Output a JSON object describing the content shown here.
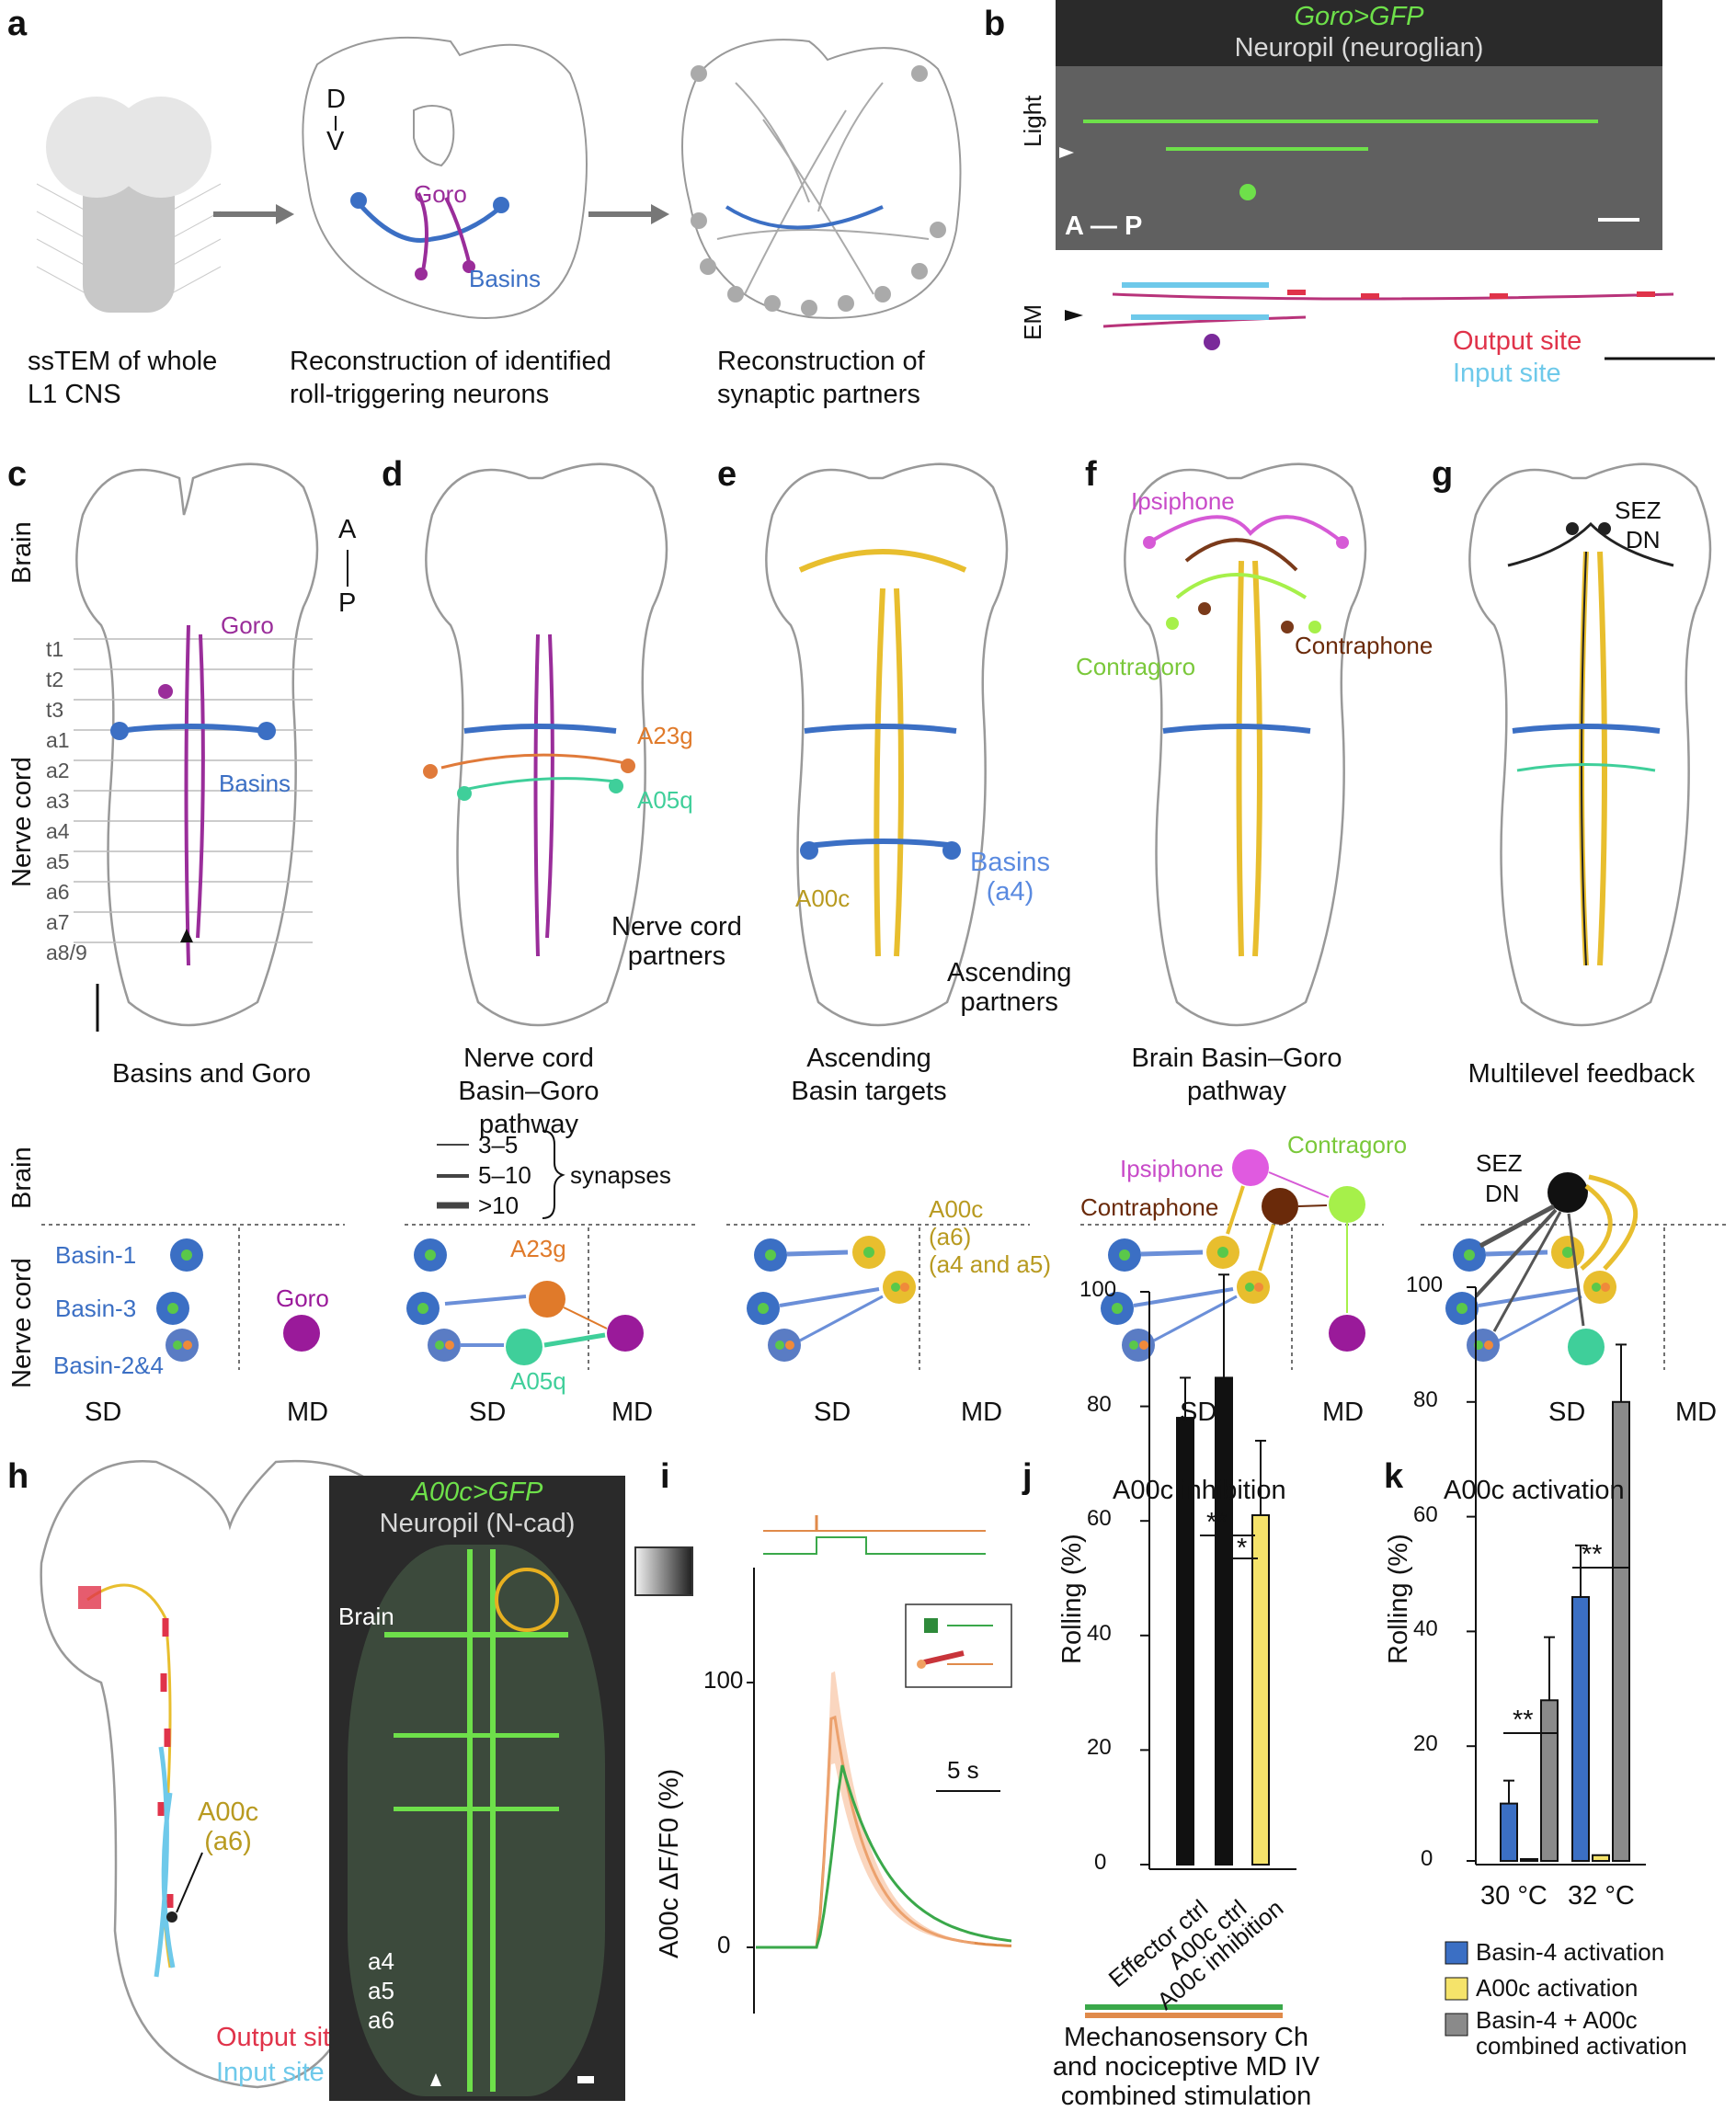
{
  "panels": {
    "a": {
      "letter": "a",
      "cap1": "ssTEM of whole",
      "cap1b": "L1 CNS",
      "cap2": "Reconstruction of identified",
      "cap2b": "roll-triggering neurons",
      "cap3": "Reconstruction of",
      "cap3b": "synaptic partners",
      "d": "D",
      "v": "V",
      "goro": "Goro",
      "basins": "Basins"
    },
    "b": {
      "letter": "b",
      "title_green": "Goro>GFP",
      "title_grey": "Neuropil (neuroglian)",
      "light": "Light",
      "em": "EM",
      "ap": "A — P",
      "output": "Output site",
      "input": "Input site"
    },
    "c": {
      "letter": "c",
      "brain": "Brain",
      "nerve": "Nerve cord",
      "a": "A",
      "p": "P",
      "goro": "Goro",
      "basins": "Basins",
      "segs": [
        "t1",
        "t2",
        "t3",
        "a1",
        "a2",
        "a3",
        "a4",
        "a5",
        "a6",
        "a7",
        "a8/9"
      ],
      "cap": "Basins and Goro"
    },
    "d": {
      "letter": "d",
      "a23g": "A23g",
      "a05q": "A05q",
      "partners1": "Nerve cord",
      "partners2": "partners",
      "cap1": "Nerve cord",
      "cap2": "Basin–Goro pathway"
    },
    "e": {
      "letter": "e",
      "basins": "Basins",
      "basins_a4": "(a4)",
      "a00c": "A00c",
      "asc1": "Ascending",
      "asc2": "partners",
      "cap1": "Ascending",
      "cap2": "Basin targets"
    },
    "f": {
      "letter": "f",
      "ipsiphone": "Ipsiphone",
      "contragoro": "Contragoro",
      "contraphone": "Contraphone",
      "cap1": "Brain Basin–Goro",
      "cap2": "pathway"
    },
    "g": {
      "letter": "g",
      "sez": "SEZ",
      "dn": "DN",
      "cap": "Multilevel feedback"
    },
    "circuits": {
      "brain": "Brain",
      "nerve": "Nerve cord",
      "basin1": "Basin-1",
      "basin3": "Basin-3",
      "basin24": "Basin-2&4",
      "goro": "Goro",
      "sd": "SD",
      "md": "MD",
      "leg1": "3–5",
      "leg2": "5–10",
      "leg3": ">10",
      "synapses": "synapses",
      "a23g": "A23g",
      "a05q": "A05q",
      "a00c": "A00c",
      "a00c_a6": "(a6)",
      "a00c_a45": "(a4 and a5)",
      "ipsiphone": "Ipsiphone",
      "contraphone": "Contraphone",
      "contragoro": "Contragoro",
      "sez": "SEZ",
      "dn": "DN"
    },
    "h": {
      "letter": "h",
      "a00c": "A00c",
      "a6": "(a6)",
      "output": "Output site",
      "input": "Input site",
      "title_green": "A00c>GFP",
      "title_grey": "Neuropil (N-cad)",
      "brain": "Brain",
      "a4": "a4",
      "a5": "a5",
      "a6s": "a6"
    },
    "i": {
      "letter": "i",
      "ylabel": "A00c ΔF/F0 (%)",
      "y100": "100",
      "y0": "0",
      "scale": "5 s"
    },
    "j": {
      "letter": "j",
      "title": "A00c inhibition",
      "ylabel": "Rolling (%)",
      "ticks": [
        "0",
        "20",
        "40",
        "60",
        "80",
        "100"
      ],
      "sig1": "**",
      "sig2": "*",
      "cats": [
        "Effector ctrl",
        "A00c ctrl",
        "A00c inhibition"
      ],
      "stim1": "Mechanosensory Ch",
      "stim2": "and nociceptive MD IV",
      "stim3": "combined stimulation"
    },
    "k": {
      "letter": "k",
      "title": "A00c activation",
      "ylabel": "Rolling (%)",
      "ticks": [
        "0",
        "20",
        "40",
        "60",
        "80",
        "100"
      ],
      "sig1": "**",
      "sig2": "**",
      "x1": "30 °C",
      "x2": "32 °C",
      "leg1": "Basin-4 activation",
      "leg2": "A00c activation",
      "leg3a": "Basin-4 + A00c",
      "leg3b": "combined activation"
    }
  },
  "chart_data": [
    {
      "type": "bar",
      "title": "A00c inhibition",
      "ylabel": "Rolling (%)",
      "ylim": [
        0,
        100
      ],
      "categories": [
        "Effector ctrl",
        "A00c ctrl",
        "A00c inhibition"
      ],
      "values": [
        78,
        85,
        61
      ],
      "errors": [
        7,
        18,
        13
      ],
      "colors": [
        "#111111",
        "#111111",
        "#f5e36a"
      ]
    },
    {
      "type": "bar",
      "title": "A00c activation",
      "ylabel": "Rolling (%)",
      "ylim": [
        0,
        100
      ],
      "categories": [
        "30 °C",
        "32 °C"
      ],
      "series": [
        {
          "name": "Basin-4 activation",
          "values": [
            10,
            46
          ],
          "errors": [
            4,
            9
          ],
          "color": "#3b6fc4"
        },
        {
          "name": "A00c activation",
          "values": [
            0,
            1
          ],
          "errors": [
            0,
            0
          ],
          "color": "#f5e36a"
        },
        {
          "name": "Basin-4 + A00c combined activation",
          "values": [
            28,
            80
          ],
          "errors": [
            11,
            10
          ],
          "color": "#8a8a8a"
        }
      ]
    },
    {
      "type": "line",
      "ylabel": "A00c ΔF/F0 (%)",
      "ylim": [
        0,
        140
      ],
      "series": [
        {
          "name": "green",
          "color": "#3aa84a",
          "peak": 70
        },
        {
          "name": "orange",
          "color": "#e08a4a",
          "peak": 94
        }
      ]
    }
  ]
}
